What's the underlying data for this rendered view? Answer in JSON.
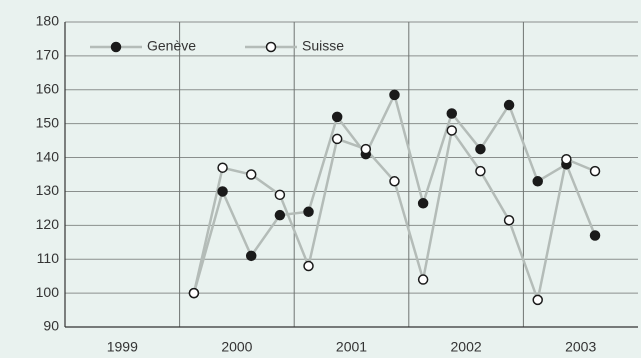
{
  "chart_data": {
    "type": "line",
    "series": [
      {
        "name": "Genève",
        "color": "#b4bcb8",
        "marker": "filled",
        "marker_color": "#1a1a1a",
        "values": [
          100,
          130,
          111,
          123,
          124,
          152,
          141,
          158.5,
          126.5,
          153,
          142.5,
          155.5,
          133,
          138,
          117
        ]
      },
      {
        "name": "Suisse",
        "color": "#b4bcb8",
        "marker": "open",
        "marker_color": "#1a1a1a",
        "values": [
          100,
          137,
          135,
          129,
          108,
          145.5,
          142.5,
          133,
          104,
          148,
          136,
          121.5,
          98,
          139.5,
          136
        ]
      }
    ],
    "x": [
      2000.125,
      2000.375,
      2000.625,
      2000.875,
      2001.125,
      2001.375,
      2001.625,
      2001.875,
      2002.125,
      2002.375,
      2002.625,
      2002.875,
      2003.125,
      2003.375,
      2003.625
    ],
    "xlim": [
      1999,
      2004
    ],
    "xticks": [
      {
        "value": 1999.5,
        "label": "1999"
      },
      {
        "value": 2000.5,
        "label": "2000"
      },
      {
        "value": 2001.5,
        "label": "2001"
      },
      {
        "value": 2002.5,
        "label": "2002"
      },
      {
        "value": 2003.5,
        "label": "2003"
      }
    ],
    "xgrid": [
      2000,
      2001,
      2002,
      2003
    ],
    "ylim": [
      90,
      180
    ],
    "yticks": [
      90,
      100,
      110,
      120,
      130,
      140,
      150,
      160,
      170,
      180
    ],
    "grid": true,
    "legend": "upper left"
  }
}
